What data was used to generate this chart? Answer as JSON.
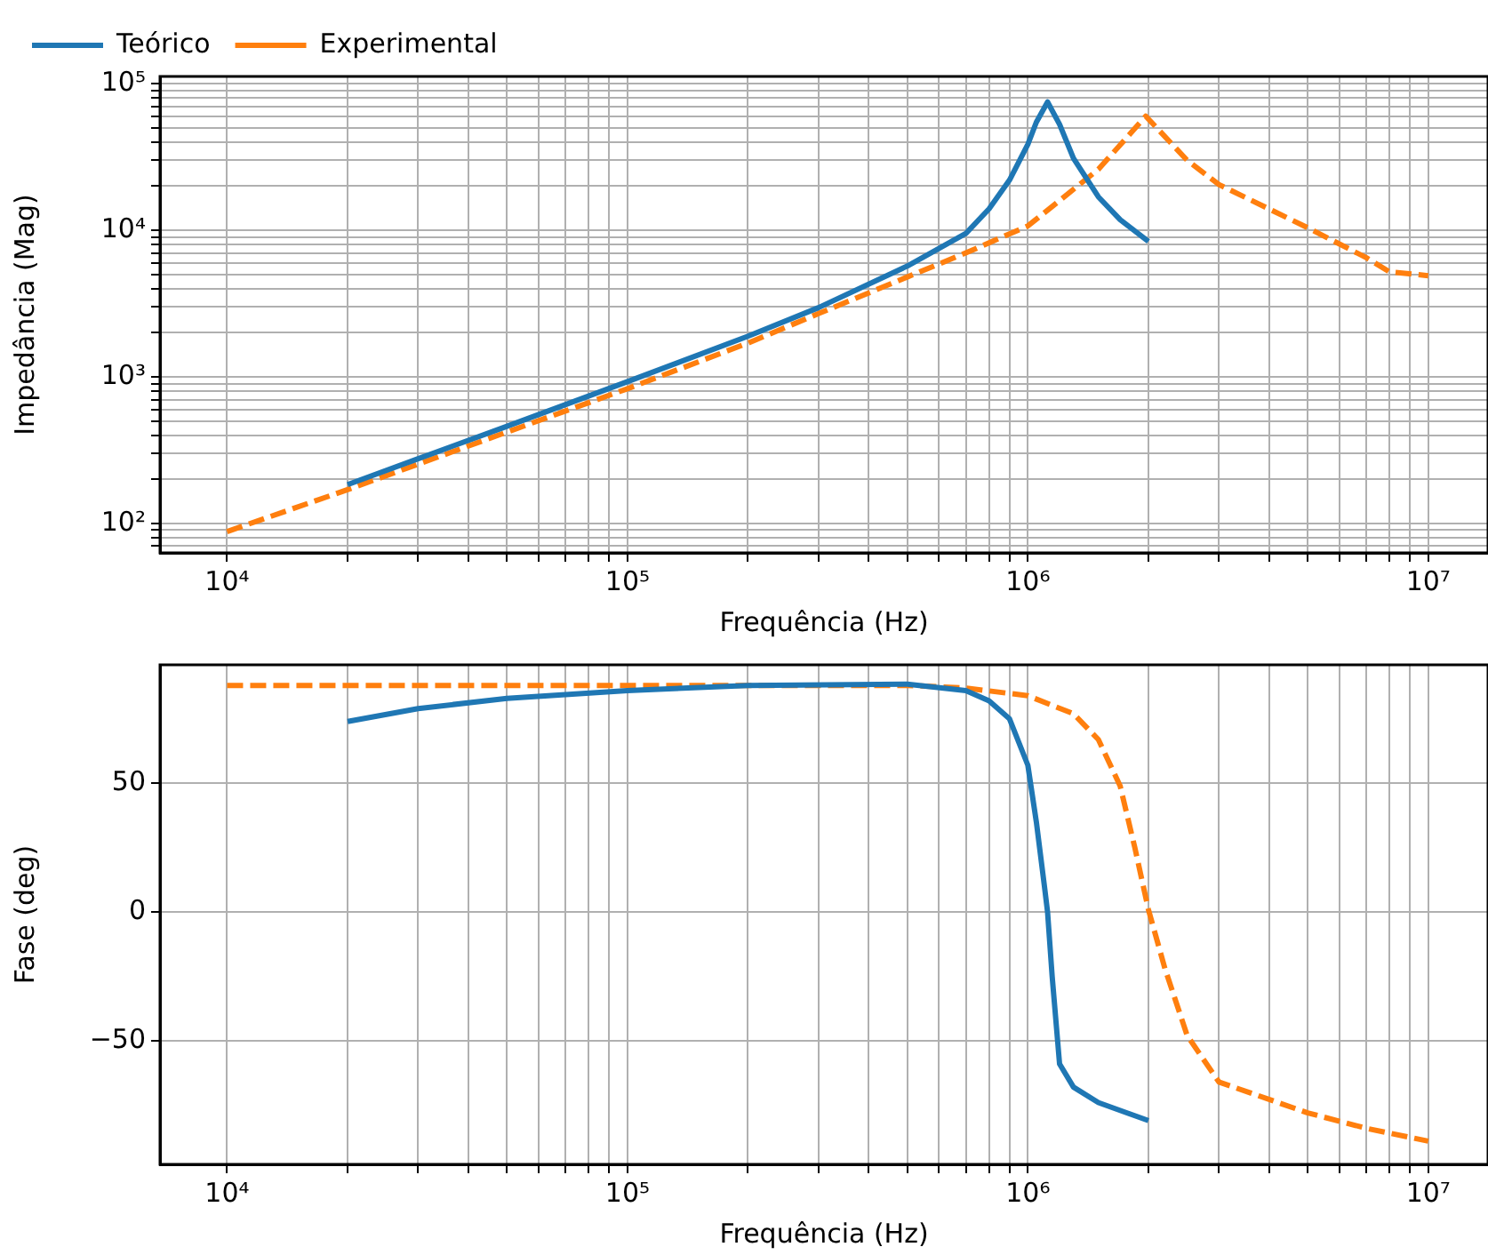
{
  "chart_data": [
    {
      "type": "line",
      "xlabel": "Frequência (Hz)",
      "ylabel": "Impedância (Mag)",
      "log": "xy",
      "grid": true,
      "legend": "top",
      "xlim": [
        6800,
        14100000
      ],
      "ylim": [
        63,
        112000
      ],
      "xticks": [
        {
          "value": 10000,
          "label": "10⁴"
        },
        {
          "value": 20000,
          "label": null
        },
        {
          "value": 30000,
          "label": null
        },
        {
          "value": 40000,
          "label": null
        },
        {
          "value": 50000,
          "label": null
        },
        {
          "value": 60000,
          "label": null
        },
        {
          "value": 70000,
          "label": null
        },
        {
          "value": 80000,
          "label": null
        },
        {
          "value": 90000,
          "label": null
        },
        {
          "value": 100000,
          "label": "10⁵"
        },
        {
          "value": 200000,
          "label": null
        },
        {
          "value": 300000,
          "label": null
        },
        {
          "value": 400000,
          "label": null
        },
        {
          "value": 500000,
          "label": null
        },
        {
          "value": 600000,
          "label": null
        },
        {
          "value": 700000,
          "label": null
        },
        {
          "value": 800000,
          "label": null
        },
        {
          "value": 900000,
          "label": null
        },
        {
          "value": 1000000,
          "label": "10⁶"
        },
        {
          "value": 2000000,
          "label": null
        },
        {
          "value": 3000000,
          "label": null
        },
        {
          "value": 4000000,
          "label": null
        },
        {
          "value": 5000000,
          "label": null
        },
        {
          "value": 6000000,
          "label": null
        },
        {
          "value": 7000000,
          "label": null
        },
        {
          "value": 8000000,
          "label": null
        },
        {
          "value": 9000000,
          "label": null
        },
        {
          "value": 10000000,
          "label": "10⁷"
        }
      ],
      "yticks": [
        {
          "value": 70,
          "label": null
        },
        {
          "value": 80,
          "label": null
        },
        {
          "value": 90,
          "label": null
        },
        {
          "value": 100,
          "label": "10²"
        },
        {
          "value": 200,
          "label": null
        },
        {
          "value": 300,
          "label": null
        },
        {
          "value": 400,
          "label": null
        },
        {
          "value": 500,
          "label": null
        },
        {
          "value": 600,
          "label": null
        },
        {
          "value": 700,
          "label": null
        },
        {
          "value": 800,
          "label": null
        },
        {
          "value": 900,
          "label": null
        },
        {
          "value": 1000,
          "label": "10³"
        },
        {
          "value": 2000,
          "label": null
        },
        {
          "value": 3000,
          "label": null
        },
        {
          "value": 4000,
          "label": null
        },
        {
          "value": 5000,
          "label": null
        },
        {
          "value": 6000,
          "label": null
        },
        {
          "value": 7000,
          "label": null
        },
        {
          "value": 8000,
          "label": null
        },
        {
          "value": 9000,
          "label": null
        },
        {
          "value": 10000,
          "label": "10⁴"
        },
        {
          "value": 20000,
          "label": null
        },
        {
          "value": 30000,
          "label": null
        },
        {
          "value": 40000,
          "label": null
        },
        {
          "value": 50000,
          "label": null
        },
        {
          "value": 60000,
          "label": null
        },
        {
          "value": 70000,
          "label": null
        },
        {
          "value": 80000,
          "label": null
        },
        {
          "value": 90000,
          "label": null
        },
        {
          "value": 100000,
          "label": "10⁵"
        }
      ],
      "series": [
        {
          "name": "Teórico",
          "color": "#1f77b4",
          "line_style": "solid",
          "x": [
            20000,
            30000,
            50000,
            100000,
            200000,
            300000,
            500000,
            700000,
            800000,
            900000,
            1000000,
            1050000,
            1120000,
            1200000,
            1300000,
            1500000,
            1700000,
            2000000
          ],
          "values": [
            184,
            276,
            460,
            927,
            1895,
            2965,
            5700,
            9500,
            14000,
            22000,
            38600,
            54600,
            75000,
            52800,
            30900,
            16900,
            11800,
            8400
          ]
        },
        {
          "name": "Experimental",
          "color": "#ff7f0e",
          "line_style": "dashed",
          "x": [
            10000,
            20000,
            50000,
            100000,
            200000,
            300000,
            500000,
            700000,
            1000000,
            1500000,
            1970000,
            2500000,
            3000000,
            5000000,
            7000000,
            8000000,
            10000000
          ],
          "values": [
            88,
            170,
            420,
            830,
            1700,
            2700,
            4800,
            7000,
            10700,
            26000,
            60000,
            30000,
            20500,
            10400,
            6500,
            5200,
            4900
          ]
        }
      ]
    },
    {
      "type": "line",
      "xlabel": "Frequência (Hz)",
      "ylabel": "Fase (deg)",
      "log": "x",
      "grid": true,
      "xlim": [
        6800,
        14100000
      ],
      "ylim": [
        -98,
        96
      ],
      "xticks": [
        {
          "value": 10000,
          "label": "10⁴"
        },
        {
          "value": 20000,
          "label": null
        },
        {
          "value": 30000,
          "label": null
        },
        {
          "value": 40000,
          "label": null
        },
        {
          "value": 50000,
          "label": null
        },
        {
          "value": 60000,
          "label": null
        },
        {
          "value": 70000,
          "label": null
        },
        {
          "value": 80000,
          "label": null
        },
        {
          "value": 90000,
          "label": null
        },
        {
          "value": 100000,
          "label": "10⁵"
        },
        {
          "value": 200000,
          "label": null
        },
        {
          "value": 300000,
          "label": null
        },
        {
          "value": 400000,
          "label": null
        },
        {
          "value": 500000,
          "label": null
        },
        {
          "value": 600000,
          "label": null
        },
        {
          "value": 700000,
          "label": null
        },
        {
          "value": 800000,
          "label": null
        },
        {
          "value": 900000,
          "label": null
        },
        {
          "value": 1000000,
          "label": "10⁶"
        },
        {
          "value": 2000000,
          "label": null
        },
        {
          "value": 3000000,
          "label": null
        },
        {
          "value": 4000000,
          "label": null
        },
        {
          "value": 5000000,
          "label": null
        },
        {
          "value": 6000000,
          "label": null
        },
        {
          "value": 7000000,
          "label": null
        },
        {
          "value": 8000000,
          "label": null
        },
        {
          "value": 9000000,
          "label": null
        },
        {
          "value": 10000000,
          "label": "10⁷"
        }
      ],
      "yticks": [
        -50,
        0,
        50
      ],
      "series": [
        {
          "color": "#1f77b4",
          "line_style": "solid",
          "x": [
            20000,
            30000,
            50000,
            100000,
            200000,
            500000,
            700000,
            800000,
            900000,
            1000000,
            1050000,
            1100000,
            1120000,
            1150000,
            1200000,
            1300000,
            1500000,
            2000000
          ],
          "values": [
            74,
            79,
            83,
            86,
            88,
            88.5,
            86,
            82,
            75,
            57,
            35,
            10,
            0,
            -25,
            -59,
            -68,
            -74,
            -81
          ]
        },
        {
          "color": "#ff7f0e",
          "line_style": "dashed",
          "x": [
            10000,
            100000,
            500000,
            700000,
            1000000,
            1300000,
            1500000,
            1700000,
            1850000,
            2000000,
            2200000,
            2500000,
            3000000,
            5000000,
            7000000,
            10000000
          ],
          "values": [
            88,
            88,
            88,
            87,
            84,
            77,
            67,
            49,
            25,
            1,
            -22,
            -48,
            -66,
            -78,
            -84,
            -89
          ]
        }
      ]
    }
  ]
}
